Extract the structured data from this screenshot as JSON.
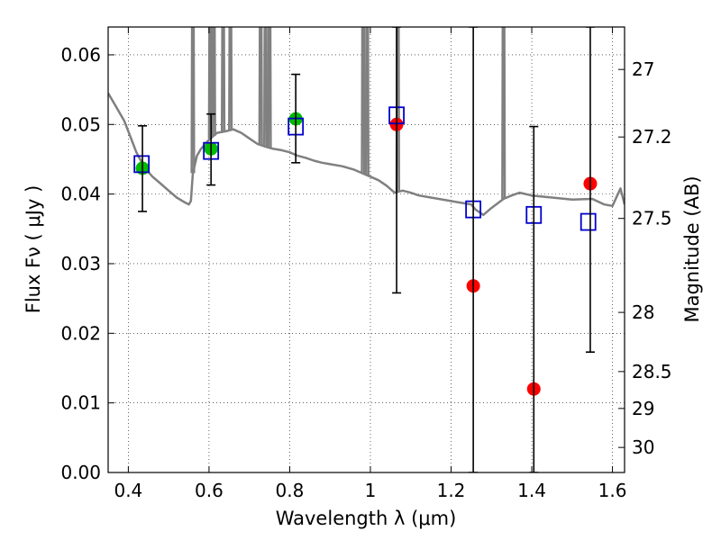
{
  "chart_data": {
    "type": "scatter",
    "xlabel": "Wavelength  λ (μm)",
    "ylabel": "Flux  Fν  ( μJy )",
    "ylabel_right": "Magnitude (AB)",
    "xlim": [
      0.35,
      1.63
    ],
    "ylim": [
      0.0,
      0.064
    ],
    "grid": true,
    "x_ticks": [
      0.4,
      0.6,
      0.8,
      1.0,
      1.2,
      1.4,
      1.6
    ],
    "x_tick_labels": [
      "0.4",
      "0.6",
      "0.8",
      "1",
      "1.2",
      "1.4",
      "1.6"
    ],
    "y_ticks": [
      0.0,
      0.01,
      0.02,
      0.03,
      0.04,
      0.05,
      0.06
    ],
    "y_tick_labels": [
      "0.00",
      "0.01",
      "0.02",
      "0.03",
      "0.04",
      "0.05",
      "0.06"
    ],
    "right_ticks": [
      {
        "label": "27",
        "flux": 0.0579
      },
      {
        "label": "27.2",
        "flux": 0.0482
      },
      {
        "label": "27.5",
        "flux": 0.0365
      },
      {
        "label": "28",
        "flux": 0.023
      },
      {
        "label": "28.5",
        "flux": 0.0145
      },
      {
        "label": "29",
        "flux": 0.0092
      },
      {
        "label": "30",
        "flux": 0.0036
      }
    ],
    "series": [
      {
        "type": "line",
        "color": "#808080",
        "x": [
          0.35,
          0.37,
          0.39,
          0.4,
          0.42,
          0.44,
          0.46,
          0.48,
          0.5,
          0.52,
          0.54,
          0.55,
          0.555,
          0.56,
          0.57,
          0.58,
          0.6,
          0.62,
          0.64,
          0.66,
          0.68,
          0.7,
          0.72,
          0.74,
          0.76,
          0.78,
          0.8,
          0.82,
          0.84,
          0.86,
          0.88,
          0.9,
          0.93,
          0.96,
          1.0,
          1.02,
          1.04,
          1.06,
          1.08,
          1.1,
          1.12,
          1.15,
          1.2,
          1.25,
          1.26,
          1.28,
          1.3,
          1.33,
          1.35,
          1.37,
          1.4,
          1.45,
          1.5,
          1.55,
          1.58,
          1.6,
          1.62,
          1.63
        ],
        "y": [
          0.0545,
          0.0525,
          0.0505,
          0.049,
          0.046,
          0.0438,
          0.0425,
          0.0415,
          0.0405,
          0.0395,
          0.0388,
          0.0385,
          0.039,
          0.043,
          0.0455,
          0.0465,
          0.0478,
          0.0488,
          0.049,
          0.0493,
          0.0488,
          0.048,
          0.0472,
          0.0468,
          0.0465,
          0.0463,
          0.046,
          0.0455,
          0.0452,
          0.0448,
          0.0445,
          0.0443,
          0.044,
          0.0435,
          0.0425,
          0.042,
          0.0412,
          0.0402,
          0.0405,
          0.0402,
          0.0398,
          0.0395,
          0.039,
          0.0385,
          0.0378,
          0.037,
          0.038,
          0.0393,
          0.0398,
          0.0402,
          0.0398,
          0.0395,
          0.0392,
          0.0393,
          0.0385,
          0.0383,
          0.0408,
          0.0385
        ]
      },
      {
        "type": "spikes",
        "color": "#808080",
        "x": [
          0.56,
          0.603,
          0.612,
          0.635,
          0.653,
          0.728,
          0.74,
          0.75,
          0.982,
          0.992,
          1.068,
          1.33
        ],
        "top": [
          0.064,
          0.064,
          0.064,
          0.064,
          0.064,
          0.064,
          0.064,
          0.064,
          0.064,
          0.064,
          0.064,
          0.064
        ]
      },
      {
        "type": "scatter",
        "marker": "circle",
        "color": "#00bb00",
        "x": [
          0.435,
          0.605,
          0.815
        ],
        "y": [
          0.0437,
          0.0465,
          0.0508
        ]
      },
      {
        "type": "scatter",
        "marker": "circle",
        "color": "#ff0000",
        "x": [
          1.065,
          1.255,
          1.405,
          1.545
        ],
        "y": [
          0.05,
          0.0268,
          0.012,
          0.0415
        ]
      },
      {
        "type": "scatter",
        "marker": "open-square",
        "color": "#0000cc",
        "x": [
          0.433,
          0.605,
          0.815,
          1.065,
          1.255,
          1.405,
          1.54
        ],
        "y": [
          0.0443,
          0.0462,
          0.0497,
          0.0513,
          0.0378,
          0.037,
          0.036
        ]
      },
      {
        "type": "errorbar",
        "color": "#000000",
        "x": [
          0.435,
          0.605,
          0.815,
          1.065,
          1.255,
          1.405,
          1.545
        ],
        "y": [
          0.0437,
          0.0465,
          0.0508,
          0.05,
          0.0268,
          0.012,
          0.0415
        ],
        "low": [
          0.0375,
          0.0413,
          0.0445,
          0.0258,
          0.0,
          0.0,
          0.0173
        ],
        "high": [
          0.0498,
          0.0515,
          0.0572,
          0.064,
          0.064,
          0.0497,
          0.064
        ]
      }
    ]
  }
}
